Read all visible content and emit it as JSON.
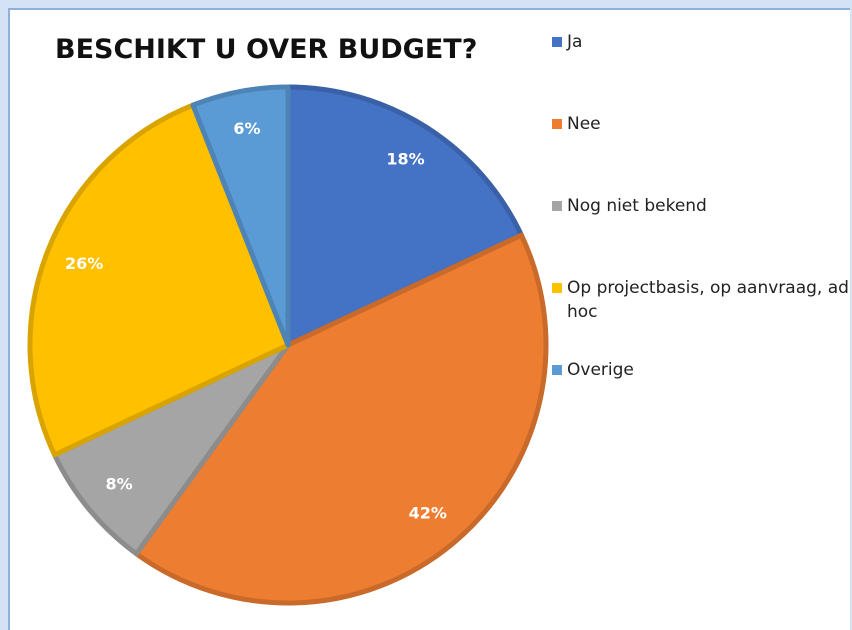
{
  "chart_data": {
    "type": "pie",
    "title": "BESCHIKT U OVER BUDGET?",
    "categories": [
      "Ja",
      "Nee",
      "Nog niet bekend",
      "Op projectbasis, op aanvraag, ad hoc",
      "Overige"
    ],
    "values": [
      18,
      42,
      8,
      26,
      6
    ],
    "value_labels": [
      "18%",
      "42%",
      "8%",
      "26%",
      "6%"
    ],
    "colors": [
      "#4472c4",
      "#ed7d31",
      "#a5a5a5",
      "#ffc000",
      "#5b9bd5"
    ],
    "legend": "right"
  }
}
